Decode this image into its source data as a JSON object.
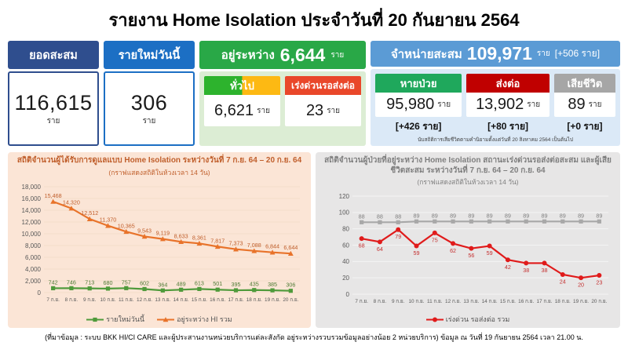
{
  "title": "รายงาน Home Isolation ประจำวันที่ 20 กันยายน 2564",
  "cards": {
    "cumulative": {
      "label": "ยอดสะสม",
      "value": "116,615",
      "unit": "ราย"
    },
    "new_today": {
      "label": "รายใหม่วันนี้",
      "value": "306",
      "unit": "ราย"
    },
    "in_progress": {
      "label": "อยู่ระหว่าง",
      "value": "6,644",
      "unit": "ราย",
      "general": {
        "label": "ทั่วไป",
        "value": "6,621",
        "unit": "ราย"
      },
      "urgent": {
        "label": "เร่งด่วนรอส่งต่อ",
        "value": "23",
        "unit": "ราย"
      }
    },
    "discharged": {
      "label": "จำหน่ายสะสม",
      "value": "109,971",
      "unit": "ราย",
      "delta": "[+506 ราย]",
      "recovered": {
        "label": "หายป่วย",
        "value": "95,980",
        "unit": "ราย",
        "delta": "[+426 ราย]"
      },
      "referred": {
        "label": "ส่งต่อ",
        "value": "13,902",
        "unit": "ราย",
        "delta": "[+80 ราย]"
      },
      "deaths": {
        "label": "เสียชีวิต",
        "value": "89",
        "unit": "ราย",
        "delta": "[+0 ราย]"
      },
      "note": "นับสถิติการเสียชีวิตตามคำนิยามตั้งแต่วันที่ 20 สิงหาคม 2564 เป็นต้นไป"
    }
  },
  "chart_data": [
    {
      "type": "line",
      "title": "สถิติจำนวนผู้ได้รับการดูแลแบบ Home Isolation ระหว่างวันที่ 7 ก.ย. 64 – 20 ก.ย. 64",
      "subtitle": "(กราฟแสดงสถิติในห้วงเวลา 14 วัน)",
      "categories": [
        "7 ก.ย.",
        "8 ก.ย.",
        "9 ก.ย.",
        "10 ก.ย.",
        "11 ก.ย.",
        "12 ก.ย.",
        "13 ก.ย.",
        "14 ก.ย.",
        "15 ก.ย.",
        "16 ก.ย.",
        "17 ก.ย.",
        "18 ก.ย.",
        "19 ก.ย.",
        "20 ก.ย."
      ],
      "series": [
        {
          "name": "รายใหม่วันนี้",
          "color": "#4f9a3b",
          "label_color": "#4e7a34",
          "marker": "square",
          "label_pos": "above",
          "values": [
            742,
            746,
            713,
            680,
            757,
            602,
            364,
            489,
            613,
            501,
            395,
            435,
            385,
            306
          ]
        },
        {
          "name": "อยู่ระหว่าง HI รวม",
          "color": "#e8732a",
          "label_color": "#c05f2c",
          "marker": "triangle",
          "label_pos": "above",
          "values": [
            15468,
            14320,
            12512,
            11370,
            10365,
            9543,
            9119,
            8633,
            8361,
            7817,
            7373,
            7088,
            6844,
            6644
          ]
        }
      ],
      "ylim": [
        0,
        18000
      ],
      "ytick_step": 2000,
      "grid": true,
      "grid_color": "#f3ddcb",
      "legend_position": "bottom",
      "bg": "#fbe5d6",
      "xlabel": "",
      "ylabel": ""
    },
    {
      "type": "line",
      "title": "สถิติจำนวนผู้ป่วยที่อยู่ระหว่าง Home Isolation สถานะเร่งด่วนรอส่งต่อสะสม และผู้เสียชีวิตสะสม ระหว่างวันที่ 7 ก.ย. 64 – 20 ก.ย. 64",
      "subtitle": "(กราฟแสดงสถิติในห้วงเวลา 14 วัน)",
      "categories": [
        "7 ก.ย.",
        "8 ก.ย.",
        "9 ก.ย.",
        "10 ก.ย.",
        "11 ก.ย.",
        "12 ก.ย.",
        "13 ก.ย.",
        "14 ก.ย.",
        "15 ก.ย.",
        "16 ก.ย.",
        "17 ก.ย.",
        "18 ก.ย.",
        "19 ก.ย.",
        "20 ก.ย."
      ],
      "series": [
        {
          "name": "เสียชีวิตสะสม",
          "color": "#a8a8a8",
          "label_color": "#7f7f7f",
          "marker": "square",
          "label_pos": "above",
          "show_in_legend": false,
          "values": [
            88,
            88,
            88,
            89,
            89,
            89,
            89,
            89,
            89,
            89,
            89,
            89,
            89,
            89
          ]
        },
        {
          "name": "เร่งด่วน รอส่งต่อ รวม",
          "color": "#e01b1b",
          "label_color": "#c43030",
          "marker": "circle",
          "label_pos": "below",
          "values": [
            68,
            64,
            79,
            59,
            75,
            62,
            56,
            59,
            42,
            38,
            38,
            24,
            20,
            23
          ]
        }
      ],
      "ylim": [
        0,
        120
      ],
      "ytick_step": 20,
      "grid": true,
      "grid_color": "#f4f4f4",
      "legend_position": "bottom",
      "bg": "#e7e6e6",
      "xlabel": "",
      "ylabel": ""
    }
  ],
  "footer": "(ที่มาข้อมูล : ระบบ BKK HI/CI CARE และผู้ประสานงานหน่วยบริการแต่ละสังกัด อยู่ระหว่างรวบรวมข้อมูลอย่างน้อย 2 หน่วยบริการ) ข้อมูล ณ วันที่ 19 กันยายน 2564 เวลา 21.00 น.",
  "colors": {
    "navy_header": "#2f4e8e",
    "blue_header": "#1c6fc4",
    "green_header": "#29a847",
    "light_green_bg": "#dcedd4",
    "sky_header": "#5b9bd5",
    "light_blue_bg": "#dbe9f7",
    "general_green": "#2db32d",
    "general_yellow": "#fdb913",
    "urgent_red": "#e9472a",
    "recovered_green": "#1fa85c",
    "referred_red": "#c00000",
    "death_gray": "#a6a6a6",
    "left_chart_bg": "#fbe5d6",
    "right_chart_bg": "#e7e6e6",
    "orange_line": "#e8732a",
    "green_line": "#4f9a3b",
    "red_line": "#e01b1b",
    "gray_line": "#a8a8a8"
  }
}
